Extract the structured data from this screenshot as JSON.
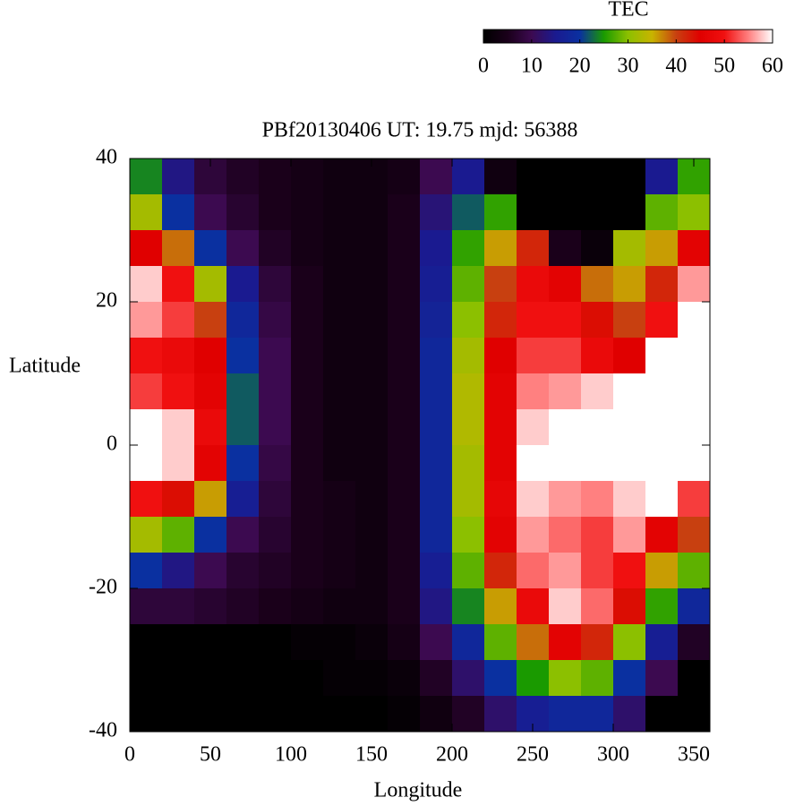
{
  "chart_data": {
    "type": "heatmap",
    "title": "PBf20130406  UT: 19.75  mjd: 56388",
    "xlabel": "Longitude",
    "ylabel": "Latitude",
    "x": [
      10,
      30,
      50,
      70,
      90,
      110,
      130,
      150,
      170,
      190,
      210,
      230,
      250,
      270,
      290,
      310,
      330,
      350
    ],
    "y": [
      37.5,
      32.5,
      27.5,
      22.5,
      17.5,
      12.5,
      7.5,
      2.5,
      -2.5,
      -7.5,
      -12.5,
      -17.5,
      -22.5,
      -27.5,
      -32.5,
      -37.5
    ],
    "z": [
      [
        24,
        14,
        8,
        6,
        5,
        4,
        3,
        3,
        4,
        10,
        15,
        3,
        0,
        0,
        0,
        0,
        15,
        26
      ],
      [
        32,
        20,
        10,
        7,
        5,
        4,
        3,
        3,
        5,
        13,
        22,
        26,
        0,
        0,
        0,
        0,
        28,
        30
      ],
      [
        45,
        38,
        20,
        10,
        6,
        4,
        3,
        3,
        5,
        15,
        26,
        36,
        42,
        5,
        2,
        32,
        36,
        46
      ],
      [
        58,
        50,
        32,
        15,
        8,
        5,
        3,
        3,
        5,
        16,
        28,
        40,
        48,
        46,
        38,
        36,
        42,
        56
      ],
      [
        56,
        52,
        40,
        18,
        9,
        5,
        3,
        3,
        5,
        17,
        30,
        42,
        50,
        50,
        44,
        40,
        50,
        60
      ],
      [
        50,
        48,
        45,
        20,
        10,
        5,
        3,
        3,
        5,
        18,
        32,
        45,
        52,
        52,
        48,
        45,
        60,
        60
      ],
      [
        52,
        50,
        46,
        22,
        10,
        5,
        3,
        3,
        5,
        18,
        33,
        46,
        55,
        56,
        58,
        60,
        60,
        60
      ],
      [
        60,
        58,
        48,
        22,
        10,
        5,
        3,
        3,
        5,
        18,
        33,
        46,
        58,
        60,
        60,
        60,
        60,
        60
      ],
      [
        60,
        58,
        46,
        20,
        9,
        5,
        3,
        3,
        5,
        18,
        32,
        46,
        60,
        60,
        60,
        60,
        60,
        60
      ],
      [
        50,
        44,
        36,
        16,
        8,
        5,
        4,
        3,
        5,
        18,
        32,
        47,
        58,
        56,
        55,
        58,
        60,
        52
      ],
      [
        32,
        28,
        20,
        10,
        7,
        5,
        4,
        3,
        5,
        18,
        30,
        46,
        56,
        54,
        52,
        56,
        46,
        40
      ],
      [
        20,
        14,
        10,
        7,
        6,
        5,
        4,
        3,
        5,
        16,
        28,
        42,
        54,
        56,
        52,
        50,
        36,
        28
      ],
      [
        8,
        8,
        7,
        6,
        5,
        4,
        3,
        3,
        5,
        14,
        24,
        36,
        48,
        58,
        54,
        44,
        26,
        18
      ],
      [
        0,
        0,
        0,
        0,
        0,
        1,
        1,
        2,
        4,
        10,
        18,
        28,
        38,
        46,
        42,
        30,
        16,
        6
      ],
      [
        0,
        0,
        0,
        0,
        0,
        0,
        1,
        1,
        2,
        6,
        12,
        20,
        25,
        30,
        28,
        20,
        10,
        0
      ],
      [
        0,
        0,
        0,
        0,
        0,
        0,
        0,
        0,
        1,
        3,
        6,
        12,
        16,
        18,
        18,
        12,
        0,
        0
      ]
    ],
    "xlim": [
      0,
      360
    ],
    "xticks": [
      0,
      50,
      100,
      150,
      200,
      250,
      300,
      350
    ],
    "ylim": [
      -40,
      40
    ],
    "yticks": [
      -40,
      -20,
      0,
      20,
      40
    ],
    "colorbar": {
      "label": "TEC",
      "lim": [
        0,
        60
      ],
      "ticks": [
        0,
        10,
        20,
        30,
        40,
        50,
        60
      ],
      "colors": [
        "#000000",
        "#1a001a",
        "#3c0a50",
        "#1a1a90",
        "#0a30a0",
        "#1a9a00",
        "#8cc000",
        "#c8b400",
        "#c84010",
        "#e00000",
        "#f01010",
        "#ff8080",
        "#ffffff"
      ]
    }
  }
}
